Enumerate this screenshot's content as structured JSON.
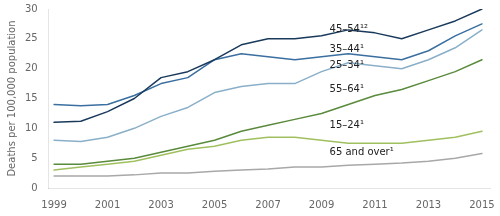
{
  "chart_data": {
    "type": "line",
    "y_label": "Deaths per 100,000 population",
    "x": [
      1999,
      2000,
      2001,
      2002,
      2003,
      2004,
      2005,
      2006,
      2007,
      2008,
      2009,
      2010,
      2011,
      2012,
      2013,
      2014,
      2015
    ],
    "series": [
      {
        "name": "45–54¹²",
        "color": "#1a3a5c",
        "values": [
          11.0,
          11.2,
          12.8,
          15.0,
          18.5,
          19.5,
          21.5,
          24.0,
          25.0,
          25.0,
          25.5,
          26.5,
          26.0,
          25.0,
          26.5,
          28.0,
          30.0
        ]
      },
      {
        "name": "35–44¹",
        "color": "#3a6fa0",
        "values": [
          14.0,
          13.8,
          14.0,
          15.5,
          17.5,
          18.5,
          21.5,
          22.5,
          22.0,
          21.5,
          22.0,
          22.5,
          22.0,
          21.5,
          23.0,
          25.5,
          27.5
        ]
      },
      {
        "name": "25–34¹",
        "color": "#8aafc8",
        "values": [
          8.0,
          7.8,
          8.5,
          10.0,
          12.0,
          13.5,
          16.0,
          17.0,
          17.5,
          17.5,
          19.5,
          21.0,
          20.5,
          20.0,
          21.5,
          23.5,
          26.5
        ]
      },
      {
        "name": "55–64¹",
        "color": "#5a8a3c",
        "values": [
          4.0,
          4.0,
          4.5,
          5.0,
          6.0,
          7.0,
          8.0,
          9.5,
          10.5,
          11.5,
          12.5,
          14.0,
          15.5,
          16.5,
          18.0,
          19.5,
          21.5
        ]
      },
      {
        "name": "15–24¹",
        "color": "#a0c060",
        "values": [
          3.0,
          3.5,
          4.0,
          4.5,
          5.5,
          6.5,
          7.0,
          8.0,
          8.5,
          8.5,
          8.0,
          7.5,
          7.5,
          7.5,
          8.0,
          8.5,
          9.5
        ]
      },
      {
        "name": "65 and over¹",
        "color": "#a8a8a8",
        "values": [
          2.0,
          2.0,
          2.0,
          2.2,
          2.5,
          2.5,
          2.8,
          3.0,
          3.2,
          3.5,
          3.5,
          3.8,
          4.0,
          4.2,
          4.5,
          5.0,
          5.8
        ]
      }
    ],
    "annotations": [
      {
        "text": "45–54¹²",
        "x": 2009.3,
        "y": 26.5
      },
      {
        "text": "35–44¹",
        "x": 2009.3,
        "y": 23.2
      },
      {
        "text": "25–34¹",
        "x": 2009.3,
        "y": 20.5
      },
      {
        "text": "55–64¹",
        "x": 2009.3,
        "y": 16.5
      },
      {
        "text": "15–24¹",
        "x": 2009.3,
        "y": 10.5
      },
      {
        "text": "65 and over¹",
        "x": 2009.3,
        "y": 6.0
      }
    ],
    "xlim": [
      1998.8,
      2015.3
    ],
    "xticks": [
      1999,
      2001,
      2003,
      2005,
      2007,
      2009,
      2011,
      2013,
      2015
    ],
    "ylim": [
      0,
      30
    ],
    "yticks": [
      0,
      5,
      10,
      15,
      20,
      25,
      30
    ],
    "grid": false
  }
}
